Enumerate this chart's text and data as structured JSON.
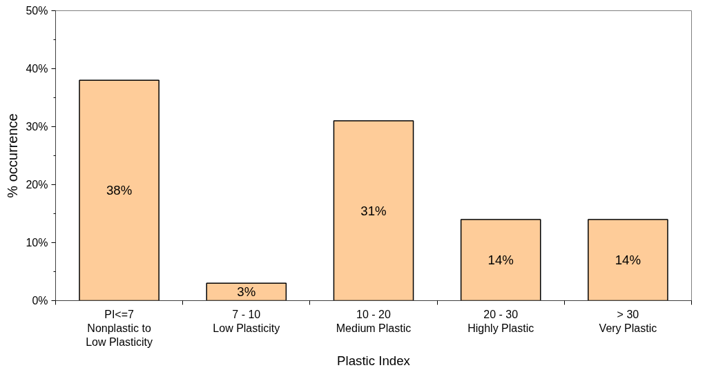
{
  "chart_data": {
    "type": "bar",
    "xlabel": "Plastic Index",
    "ylabel": "% occurrence",
    "categories": [
      "PI<=7\nNonplastic to\nLow Plasticity",
      "7 - 10\nLow Plasticity",
      "10 - 20\nMedium Plastic",
      "20 - 30\nHighly Plastic",
      "> 30\nVery Plastic"
    ],
    "values": [
      38,
      3,
      31,
      14,
      14
    ],
    "value_labels": [
      "38%",
      "3%",
      "31%",
      "14%",
      "14%"
    ],
    "color": "#fecc99",
    "ylim": [
      0,
      50
    ],
    "yticks": [
      {
        "value": 0,
        "label": "0%"
      },
      {
        "value": 5,
        "label": null
      },
      {
        "value": 10,
        "label": "10%"
      },
      {
        "value": 15,
        "label": null
      },
      {
        "value": 20,
        "label": "20%"
      },
      {
        "value": 25,
        "label": null
      },
      {
        "value": 30,
        "label": "30%"
      },
      {
        "value": 35,
        "label": null
      },
      {
        "value": 40,
        "label": "40%"
      },
      {
        "value": 45,
        "label": null
      },
      {
        "value": 50,
        "label": "50%"
      }
    ],
    "grid": false
  }
}
